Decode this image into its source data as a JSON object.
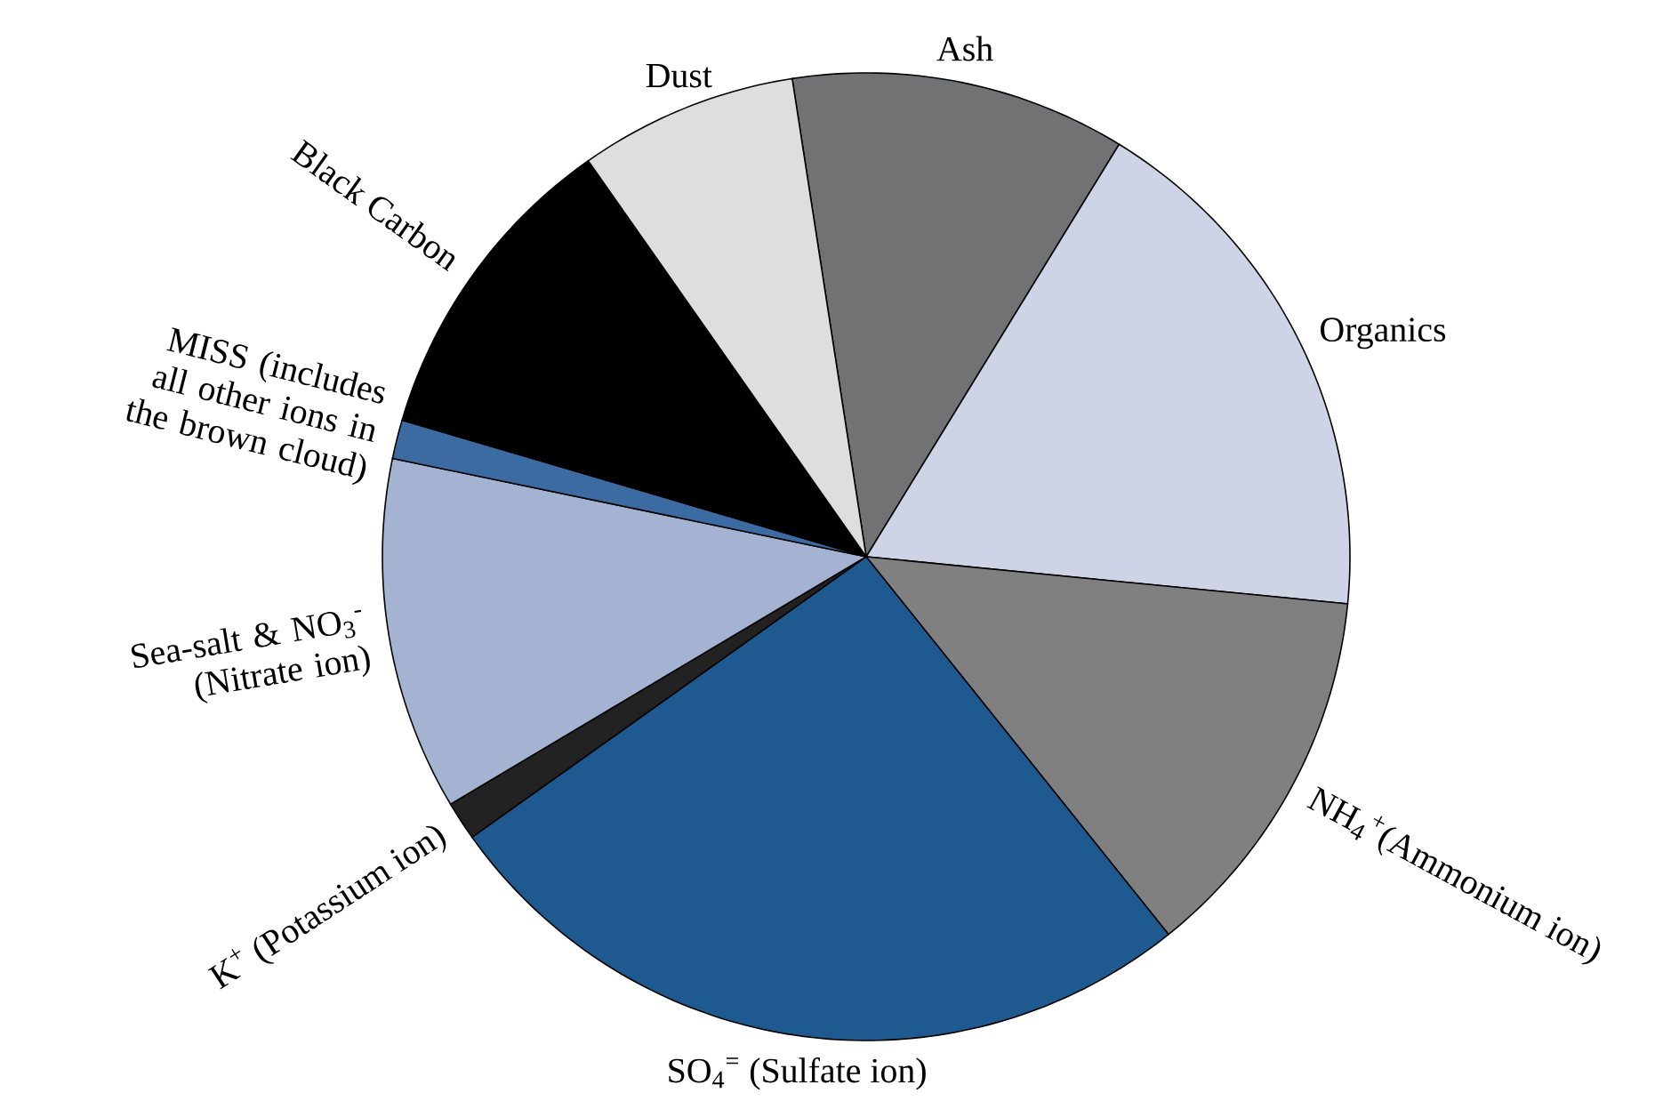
{
  "chart_data": {
    "type": "pie",
    "categories": [
      "Ash",
      "Organics",
      "NH$_{4}$$^{+}$(Ammonium ion)",
      "SO$_{4}$$^{=}$ (Sulfate ion)",
      "K$^{+}$ (Potassium ion)",
      "Sea-salt & NO$_{3}$$^{-}$ (Nitrate ion)",
      "MISS (includes all other ions in the brown cloud)",
      "Black Carbon",
      "Dust"
    ],
    "values": [
      11.2,
      17.8,
      12.7,
      25.9,
      1.3,
      11.8,
      1.3,
      10.7,
      7.3
    ],
    "colors": [
      "#717274",
      "#ced4e6",
      "#808080",
      "#1e5a8f",
      "#222222",
      "#a4b3d1",
      "#3b6ba1",
      "#000000",
      "#dedede"
    ]
  }
}
